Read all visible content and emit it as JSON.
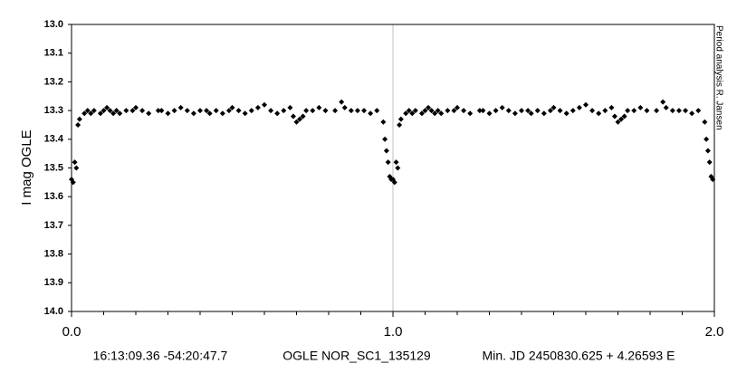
{
  "chart_data": {
    "type": "scatter",
    "y_label": "I mag OGLE",
    "annotations": [
      "16:13:09.36 -54:20:47.7",
      "OGLE NOR_SC1_135129",
      "Min. JD 2450830.625 + 4.26593 E",
      "Period analysis  R. Jansen"
    ],
    "color": "#000000",
    "xlim": [
      0,
      2
    ],
    "xticks": [
      {
        "value": 0,
        "label": "0.0"
      },
      {
        "value": 1,
        "label": "1.0"
      },
      {
        "value": 2,
        "label": "2.0"
      }
    ],
    "xminorticks": [
      0.1,
      0.2,
      0.3,
      0.4,
      0.5,
      0.6,
      0.7,
      0.8,
      0.9,
      1.1,
      1.2,
      1.3,
      1.4,
      1.5,
      1.6,
      1.7,
      1.8,
      1.9
    ],
    "ylim": [
      13.0,
      14.0
    ],
    "yinverted": true,
    "yticks": [
      {
        "value": 13.0,
        "label": "13.0"
      },
      {
        "value": 13.1,
        "label": "13.1"
      },
      {
        "value": 13.2,
        "label": "13.2"
      },
      {
        "value": 13.3,
        "label": "13.3"
      },
      {
        "value": 13.4,
        "label": "13.4"
      },
      {
        "value": 13.5,
        "label": "13.5"
      },
      {
        "value": 13.6,
        "label": "13.6"
      },
      {
        "value": 13.7,
        "label": "13.7"
      },
      {
        "value": 13.8,
        "label": "13.8"
      },
      {
        "value": 13.9,
        "label": "13.9"
      },
      {
        "value": 14.0,
        "label": "14.0"
      }
    ],
    "xgrid": true,
    "x": [
      0.0,
      0.005,
      0.01,
      0.015,
      0.02,
      0.025,
      0.04,
      0.05,
      0.06,
      0.07,
      0.09,
      0.1,
      0.11,
      0.12,
      0.13,
      0.14,
      0.15,
      0.17,
      0.19,
      0.2,
      0.22,
      0.24,
      0.27,
      0.28,
      0.3,
      0.32,
      0.34,
      0.36,
      0.38,
      0.4,
      0.42,
      0.43,
      0.45,
      0.47,
      0.49,
      0.5,
      0.52,
      0.54,
      0.56,
      0.58,
      0.6,
      0.62,
      0.64,
      0.66,
      0.68,
      0.69,
      0.7,
      0.71,
      0.72,
      0.73,
      0.75,
      0.77,
      0.79,
      0.82,
      0.84,
      0.85,
      0.87,
      0.89,
      0.91,
      0.93,
      0.95,
      0.97,
      0.975,
      0.98,
      0.985,
      0.99,
      0.995,
      1.0,
      1.005,
      1.01,
      1.015,
      1.02,
      1.025,
      1.04,
      1.05,
      1.06,
      1.07,
      1.09,
      1.1,
      1.11,
      1.12,
      1.13,
      1.14,
      1.15,
      1.17,
      1.19,
      1.2,
      1.22,
      1.24,
      1.27,
      1.28,
      1.3,
      1.32,
      1.34,
      1.36,
      1.38,
      1.4,
      1.42,
      1.43,
      1.45,
      1.47,
      1.49,
      1.5,
      1.52,
      1.54,
      1.56,
      1.58,
      1.6,
      1.62,
      1.64,
      1.66,
      1.68,
      1.69,
      1.7,
      1.71,
      1.72,
      1.73,
      1.75,
      1.77,
      1.79,
      1.82,
      1.84,
      1.85,
      1.87,
      1.89,
      1.91,
      1.93,
      1.95,
      1.97,
      1.975,
      1.98,
      1.985,
      1.99,
      1.995
    ],
    "values": [
      13.54,
      13.55,
      13.48,
      13.5,
      13.35,
      13.33,
      13.31,
      13.3,
      13.31,
      13.3,
      13.31,
      13.3,
      13.29,
      13.3,
      13.31,
      13.3,
      13.31,
      13.3,
      13.3,
      13.29,
      13.3,
      13.31,
      13.3,
      13.3,
      13.31,
      13.3,
      13.29,
      13.3,
      13.31,
      13.3,
      13.3,
      13.31,
      13.3,
      13.31,
      13.3,
      13.29,
      13.3,
      13.31,
      13.3,
      13.29,
      13.28,
      13.3,
      13.31,
      13.3,
      13.29,
      13.32,
      13.34,
      13.33,
      13.32,
      13.3,
      13.3,
      13.29,
      13.3,
      13.3,
      13.27,
      13.29,
      13.3,
      13.3,
      13.3,
      13.31,
      13.3,
      13.34,
      13.4,
      13.44,
      13.48,
      13.53,
      13.54,
      13.54,
      13.55,
      13.48,
      13.5,
      13.35,
      13.33,
      13.31,
      13.3,
      13.31,
      13.3,
      13.31,
      13.3,
      13.29,
      13.3,
      13.31,
      13.3,
      13.31,
      13.3,
      13.3,
      13.29,
      13.3,
      13.31,
      13.3,
      13.3,
      13.31,
      13.3,
      13.29,
      13.3,
      13.31,
      13.3,
      13.3,
      13.31,
      13.3,
      13.31,
      13.3,
      13.29,
      13.3,
      13.31,
      13.3,
      13.29,
      13.28,
      13.3,
      13.31,
      13.3,
      13.29,
      13.32,
      13.34,
      13.33,
      13.32,
      13.3,
      13.3,
      13.29,
      13.3,
      13.3,
      13.27,
      13.29,
      13.3,
      13.3,
      13.3,
      13.31,
      13.3,
      13.34,
      13.4,
      13.44,
      13.48,
      13.53,
      13.54
    ]
  }
}
